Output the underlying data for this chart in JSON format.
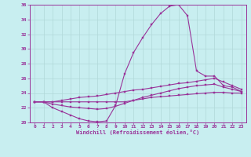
{
  "bg_color": "#c8eef0",
  "grid_color": "#b0d8d8",
  "line_color": "#993399",
  "marker_color": "#993399",
  "xlabel": "Windchill (Refroidissement éolien,°C)",
  "xlabel_color": "#993399",
  "xlim": [
    -0.5,
    23.5
  ],
  "ylim": [
    20,
    36
  ],
  "yticks": [
    20,
    22,
    24,
    26,
    28,
    30,
    32,
    34,
    36
  ],
  "xticks": [
    0,
    1,
    2,
    3,
    4,
    5,
    6,
    7,
    8,
    9,
    10,
    11,
    12,
    13,
    14,
    15,
    16,
    17,
    18,
    19,
    20,
    21,
    22,
    23
  ],
  "series": [
    {
      "x": [
        0,
        1,
        2,
        3,
        4,
        5,
        6,
        7,
        8,
        9,
        10,
        11,
        12,
        13,
        14,
        15,
        16,
        17,
        18,
        19,
        20,
        21,
        22,
        23
      ],
      "y": [
        22.8,
        22.8,
        22.0,
        21.5,
        21.0,
        20.5,
        20.2,
        20.1,
        20.2,
        22.3,
        26.6,
        29.5,
        31.5,
        33.3,
        34.8,
        35.8,
        36.0,
        34.5,
        27.0,
        26.3,
        26.3,
        25.0,
        24.8,
        24.2
      ]
    },
    {
      "x": [
        0,
        1,
        2,
        3,
        4,
        5,
        6,
        7,
        8,
        9,
        10,
        11,
        12,
        13,
        14,
        15,
        16,
        17,
        18,
        19,
        20,
        21,
        22,
        23
      ],
      "y": [
        22.8,
        22.8,
        22.8,
        23.0,
        23.2,
        23.4,
        23.5,
        23.6,
        23.8,
        24.0,
        24.2,
        24.4,
        24.5,
        24.7,
        24.9,
        25.1,
        25.3,
        25.4,
        25.6,
        25.8,
        26.0,
        25.5,
        25.0,
        24.5
      ]
    },
    {
      "x": [
        0,
        1,
        2,
        3,
        4,
        5,
        6,
        7,
        8,
        9,
        10,
        11,
        12,
        13,
        14,
        15,
        16,
        17,
        18,
        19,
        20,
        21,
        22,
        23
      ],
      "y": [
        22.8,
        22.8,
        22.5,
        22.3,
        22.1,
        22.0,
        21.9,
        21.8,
        21.9,
        22.2,
        22.6,
        23.0,
        23.4,
        23.7,
        24.0,
        24.3,
        24.6,
        24.8,
        25.0,
        25.1,
        25.2,
        24.8,
        24.5,
        24.2
      ]
    },
    {
      "x": [
        0,
        1,
        2,
        3,
        4,
        5,
        6,
        7,
        8,
        9,
        10,
        11,
        12,
        13,
        14,
        15,
        16,
        17,
        18,
        19,
        20,
        21,
        22,
        23
      ],
      "y": [
        22.8,
        22.8,
        22.8,
        22.8,
        22.8,
        22.8,
        22.8,
        22.8,
        22.8,
        22.8,
        22.8,
        23.0,
        23.2,
        23.4,
        23.5,
        23.6,
        23.7,
        23.8,
        23.9,
        24.0,
        24.1,
        24.1,
        24.0,
        24.0
      ]
    }
  ]
}
